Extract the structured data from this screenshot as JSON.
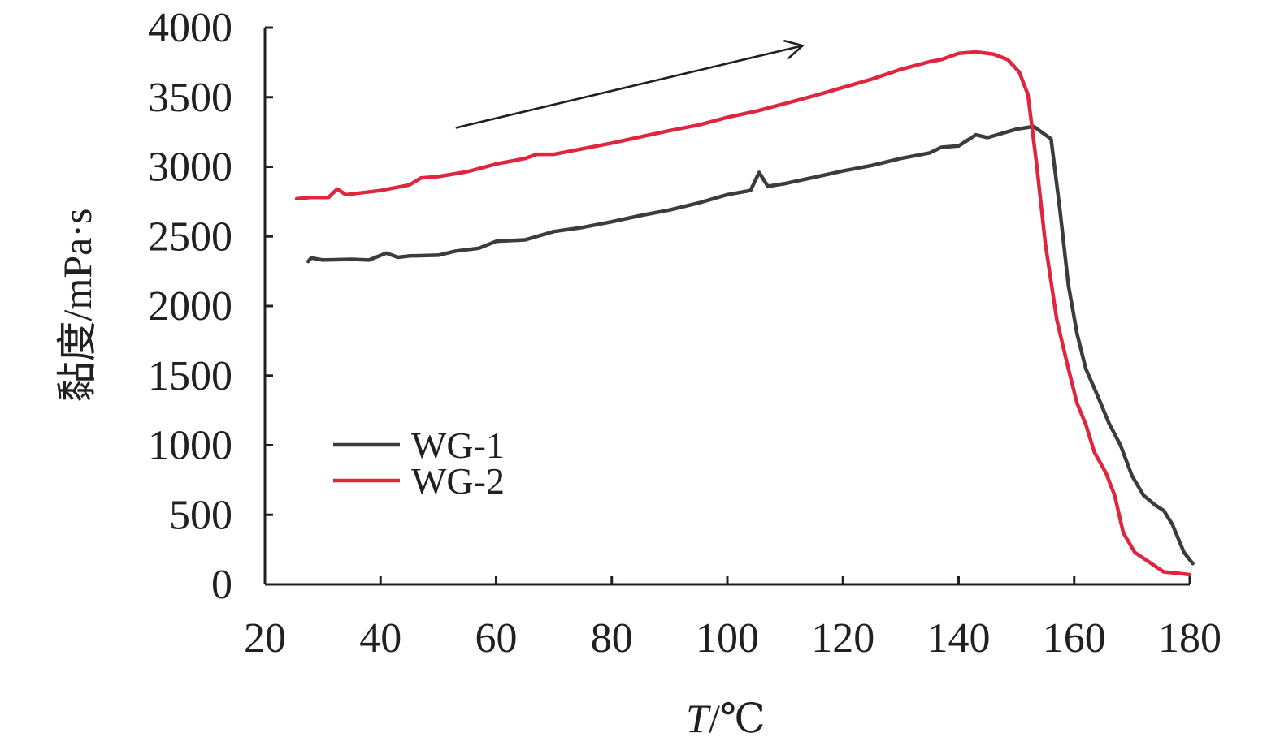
{
  "chart_data": {
    "type": "line",
    "title": "",
    "xlabel_var": "T",
    "xlabel_unit": "/℃",
    "ylabel": "黏度/mPa·s",
    "xlim": [
      20,
      180
    ],
    "ylim": [
      0,
      4000
    ],
    "x_ticks": [
      20,
      40,
      60,
      80,
      100,
      120,
      140,
      160,
      180
    ],
    "y_ticks": [
      0,
      500,
      1000,
      1500,
      2000,
      2500,
      3000,
      3500,
      4000
    ],
    "grid": false,
    "legend_position": "center-left",
    "arrow_annotation": {
      "from": [
        53,
        3280
      ],
      "to": [
        113,
        3870
      ]
    },
    "series": [
      {
        "name": "WG-1",
        "color": "#3c3c3c",
        "points": [
          [
            27.5,
            2320
          ],
          [
            28,
            2345
          ],
          [
            30,
            2330
          ],
          [
            35,
            2335
          ],
          [
            38,
            2330
          ],
          [
            41,
            2380
          ],
          [
            43,
            2350
          ],
          [
            45,
            2360
          ],
          [
            50,
            2365
          ],
          [
            53,
            2395
          ],
          [
            57,
            2415
          ],
          [
            60,
            2465
          ],
          [
            65,
            2475
          ],
          [
            70,
            2535
          ],
          [
            75,
            2565
          ],
          [
            80,
            2605
          ],
          [
            85,
            2650
          ],
          [
            90,
            2690
          ],
          [
            95,
            2740
          ],
          [
            100,
            2800
          ],
          [
            104,
            2830
          ],
          [
            105.5,
            2960
          ],
          [
            107,
            2860
          ],
          [
            110,
            2880
          ],
          [
            115,
            2925
          ],
          [
            120,
            2970
          ],
          [
            125,
            3010
          ],
          [
            130,
            3060
          ],
          [
            135,
            3100
          ],
          [
            137,
            3140
          ],
          [
            140,
            3150
          ],
          [
            143,
            3230
          ],
          [
            145,
            3210
          ],
          [
            150,
            3270
          ],
          [
            153,
            3290
          ],
          [
            156,
            3200
          ],
          [
            157.5,
            2700
          ],
          [
            159,
            2150
          ],
          [
            160.5,
            1800
          ],
          [
            162,
            1550
          ],
          [
            164,
            1360
          ],
          [
            166,
            1160
          ],
          [
            168,
            1000
          ],
          [
            170,
            780
          ],
          [
            172,
            640
          ],
          [
            174,
            570
          ],
          [
            175.5,
            530
          ],
          [
            177,
            430
          ],
          [
            179,
            230
          ],
          [
            180.5,
            150
          ]
        ]
      },
      {
        "name": "WG-2",
        "color": "#e0263f",
        "points": [
          [
            25.5,
            2770
          ],
          [
            28,
            2780
          ],
          [
            31,
            2780
          ],
          [
            32.5,
            2840
          ],
          [
            34,
            2800
          ],
          [
            40,
            2830
          ],
          [
            45,
            2870
          ],
          [
            47,
            2920
          ],
          [
            50,
            2930
          ],
          [
            55,
            2965
          ],
          [
            60,
            3020
          ],
          [
            65,
            3060
          ],
          [
            67,
            3090
          ],
          [
            70,
            3090
          ],
          [
            75,
            3130
          ],
          [
            80,
            3170
          ],
          [
            85,
            3215
          ],
          [
            90,
            3260
          ],
          [
            95,
            3300
          ],
          [
            100,
            3355
          ],
          [
            105,
            3400
          ],
          [
            110,
            3455
          ],
          [
            115,
            3510
          ],
          [
            120,
            3570
          ],
          [
            125,
            3630
          ],
          [
            130,
            3700
          ],
          [
            135,
            3755
          ],
          [
            137,
            3770
          ],
          [
            140,
            3815
          ],
          [
            143,
            3825
          ],
          [
            146,
            3810
          ],
          [
            148.5,
            3770
          ],
          [
            150.5,
            3680
          ],
          [
            152,
            3520
          ],
          [
            153.5,
            3020
          ],
          [
            155,
            2450
          ],
          [
            157,
            1900
          ],
          [
            159,
            1550
          ],
          [
            160.5,
            1300
          ],
          [
            162,
            1150
          ],
          [
            163.5,
            950
          ],
          [
            165.5,
            800
          ],
          [
            167,
            640
          ],
          [
            168.5,
            370
          ],
          [
            170.5,
            230
          ],
          [
            173,
            160
          ],
          [
            175.5,
            90
          ],
          [
            178,
            80
          ],
          [
            180,
            70
          ]
        ]
      }
    ]
  }
}
